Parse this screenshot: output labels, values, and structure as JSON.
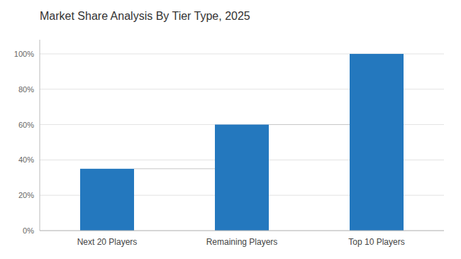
{
  "chart_data": {
    "type": "bar",
    "title": "Market Share Analysis By Tier Type, 2025",
    "categories": [
      "Next 20 Players",
      "Remaining Players",
      "Top 10 Players"
    ],
    "values": [
      35,
      60,
      100
    ],
    "color": "#2478be",
    "ylim": [
      0,
      108
    ],
    "yticks": [
      {
        "value": 0,
        "label": "0%"
      },
      {
        "value": 20,
        "label": "20%"
      },
      {
        "value": 40,
        "label": "40%"
      },
      {
        "value": 60,
        "label": "60%"
      },
      {
        "value": 80,
        "label": "80%"
      },
      {
        "value": 100,
        "label": "100%"
      }
    ],
    "grid": true
  }
}
